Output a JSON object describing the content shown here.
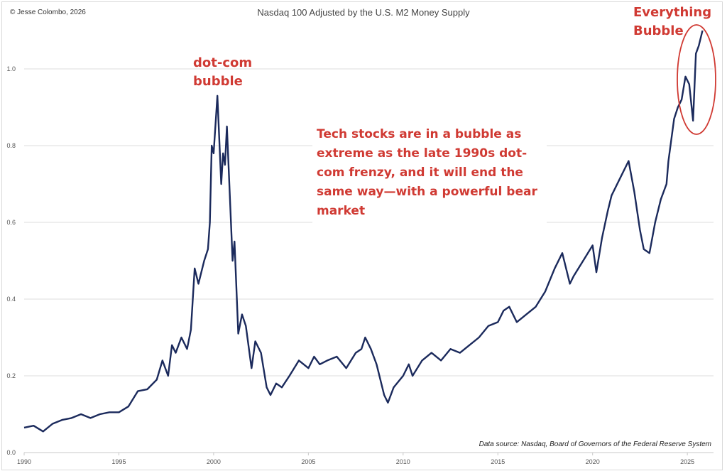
{
  "chart_data": {
    "type": "line",
    "title": "Nasdaq 100 Adjusted by the U.S. M2 Money Supply",
    "credit": "© Jesse Colombo, 2026",
    "source": "Data source: Nasdaq, Board of Governors of the Federal Reserve System",
    "xlabel": "",
    "ylabel": "",
    "xlim": [
      1990,
      2026.5
    ],
    "ylim": [
      0,
      1.1
    ],
    "x_ticks": [
      1990,
      1995,
      2000,
      2005,
      2010,
      2015,
      2020,
      2025
    ],
    "x_tick_labels": [
      "1990",
      "1995",
      "2000",
      "2005",
      "2010",
      "2015",
      "2020",
      "2025"
    ],
    "y_ticks": [
      0,
      0.2,
      0.4,
      0.6,
      0.8,
      1.0
    ],
    "y_tick_labels": [
      "0.0",
      "0.2",
      "0.4",
      "0.6",
      "0.8",
      "1.0"
    ],
    "grid": true,
    "line_color": "#1b2a5c",
    "annotation_color": "#d03a33",
    "annotations": {
      "dotcom": [
        "dot-com",
        "bubble"
      ],
      "everything": [
        "Everything",
        "Bubble"
      ],
      "body": "Tech stocks are in a bubble as extreme as the late 1990s dot-com frenzy, and it will end the same way—with a powerful bear market"
    },
    "series": [
      {
        "name": "Nasdaq 100 / M2",
        "x": [
          1990.0,
          1990.5,
          1991.0,
          1991.5,
          1992.0,
          1992.5,
          1993.0,
          1993.5,
          1994.0,
          1994.5,
          1995.0,
          1995.5,
          1996.0,
          1996.5,
          1997.0,
          1997.3,
          1997.6,
          1997.8,
          1998.0,
          1998.3,
          1998.6,
          1998.8,
          1999.0,
          1999.2,
          1999.5,
          1999.7,
          1999.8,
          1999.9,
          2000.0,
          2000.2,
          2000.4,
          2000.5,
          2000.6,
          2000.7,
          2001.0,
          2001.1,
          2001.3,
          2001.5,
          2001.7,
          2002.0,
          2002.2,
          2002.5,
          2002.8,
          2003.0,
          2003.3,
          2003.6,
          2004.0,
          2004.5,
          2005.0,
          2005.3,
          2005.6,
          2006.0,
          2006.5,
          2007.0,
          2007.5,
          2007.8,
          2008.0,
          2008.3,
          2008.6,
          2009.0,
          2009.2,
          2009.5,
          2010.0,
          2010.3,
          2010.5,
          2011.0,
          2011.5,
          2012.0,
          2012.5,
          2013.0,
          2013.5,
          2014.0,
          2014.5,
          2015.0,
          2015.3,
          2015.6,
          2016.0,
          2016.5,
          2017.0,
          2017.5,
          2018.0,
          2018.4,
          2018.8,
          2019.0,
          2019.5,
          2020.0,
          2020.2,
          2020.5,
          2020.8,
          2021.0,
          2021.5,
          2021.9,
          2022.2,
          2022.5,
          2022.7,
          2023.0,
          2023.3,
          2023.6,
          2023.9,
          2024.0,
          2024.3,
          2024.5,
          2024.7,
          2024.9,
          2025.1,
          2025.3,
          2025.45,
          2025.6,
          2025.8
        ],
        "y": [
          0.065,
          0.07,
          0.055,
          0.075,
          0.085,
          0.09,
          0.1,
          0.09,
          0.1,
          0.105,
          0.105,
          0.12,
          0.16,
          0.165,
          0.19,
          0.24,
          0.2,
          0.28,
          0.26,
          0.3,
          0.27,
          0.32,
          0.48,
          0.44,
          0.5,
          0.53,
          0.6,
          0.8,
          0.78,
          0.93,
          0.7,
          0.78,
          0.75,
          0.85,
          0.5,
          0.55,
          0.31,
          0.36,
          0.33,
          0.22,
          0.29,
          0.26,
          0.17,
          0.15,
          0.18,
          0.17,
          0.2,
          0.24,
          0.22,
          0.25,
          0.23,
          0.24,
          0.25,
          0.22,
          0.26,
          0.27,
          0.3,
          0.27,
          0.23,
          0.15,
          0.13,
          0.17,
          0.2,
          0.23,
          0.2,
          0.24,
          0.26,
          0.24,
          0.27,
          0.26,
          0.28,
          0.3,
          0.33,
          0.34,
          0.37,
          0.38,
          0.34,
          0.36,
          0.38,
          0.42,
          0.48,
          0.52,
          0.44,
          0.46,
          0.5,
          0.54,
          0.47,
          0.56,
          0.63,
          0.67,
          0.72,
          0.76,
          0.68,
          0.58,
          0.53,
          0.52,
          0.6,
          0.66,
          0.7,
          0.76,
          0.87,
          0.9,
          0.92,
          0.98,
          0.96,
          0.865,
          1.04,
          1.06,
          1.1
        ]
      }
    ]
  }
}
